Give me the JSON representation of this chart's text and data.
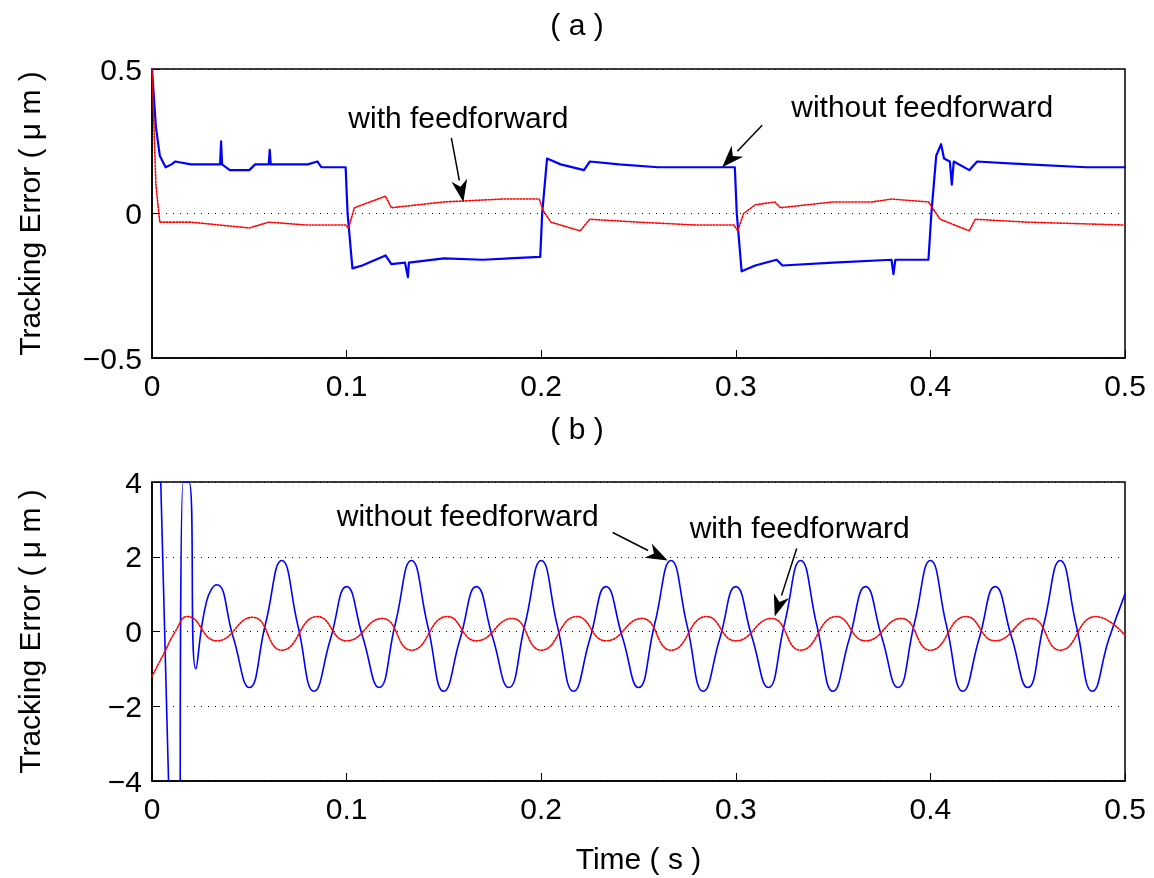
{
  "chart_data": [
    {
      "type": "line",
      "title": "( a )",
      "ylabel": "Tracking Error ( μ m )",
      "xlim": [
        0,
        0.5
      ],
      "xticks": [
        0,
        0.1,
        0.2,
        0.3,
        0.4,
        0.5
      ],
      "ylim": [
        -0.5,
        0.5
      ],
      "yticks": [
        -0.5,
        0,
        0.5
      ],
      "grid": "y",
      "marker": "none",
      "annotations": [
        {
          "text": "with feedforward",
          "x": 0.16,
          "y": 0.04
        },
        {
          "text": "without feedforward",
          "x": 0.293,
          "y": 0.16
        }
      ],
      "series": [
        {
          "color": "#0000ff",
          "line_style": "solid",
          "x": [
            0,
            0.002,
            0.004,
            0.007,
            0.01,
            0.012,
            0.02,
            0.035,
            0.0355,
            0.036,
            0.04,
            0.05,
            0.053,
            0.06,
            0.0605,
            0.061,
            0.08,
            0.085,
            0.087,
            0.0995,
            0.1005,
            0.103,
            0.108,
            0.12,
            0.123,
            0.13,
            0.1315,
            0.132,
            0.15,
            0.17,
            0.1995,
            0.2005,
            0.203,
            0.21,
            0.222,
            0.225,
            0.24,
            0.26,
            0.28,
            0.2995,
            0.3005,
            0.303,
            0.31,
            0.321,
            0.324,
            0.35,
            0.38,
            0.381,
            0.382,
            0.399,
            0.4005,
            0.403,
            0.4055,
            0.407,
            0.41,
            0.411,
            0.412,
            0.42,
            0.424,
            0.45,
            0.48,
            0.5
          ],
          "values": [
            0.5,
            0.3,
            0.2,
            0.16,
            0.17,
            0.18,
            0.17,
            0.17,
            0.25,
            0.17,
            0.15,
            0.15,
            0.17,
            0.17,
            0.22,
            0.17,
            0.17,
            0.18,
            0.16,
            0.16,
            0.0,
            -0.19,
            -0.18,
            -0.145,
            -0.175,
            -0.17,
            -0.22,
            -0.17,
            -0.155,
            -0.16,
            -0.15,
            0.0,
            0.19,
            0.17,
            0.15,
            0.18,
            0.17,
            0.16,
            0.16,
            0.16,
            0.0,
            -0.2,
            -0.18,
            -0.16,
            -0.18,
            -0.17,
            -0.16,
            -0.21,
            -0.16,
            -0.16,
            0.0,
            0.2,
            0.24,
            0.19,
            0.18,
            0.1,
            0.18,
            0.15,
            0.18,
            0.17,
            0.16,
            0.16
          ]
        },
        {
          "color": "#ff0000",
          "line_style": "dotted",
          "x": [
            0,
            0.002,
            0.004,
            0.02,
            0.05,
            0.06,
            0.08,
            0.0995,
            0.101,
            0.104,
            0.12,
            0.123,
            0.15,
            0.18,
            0.199,
            0.201,
            0.205,
            0.22,
            0.225,
            0.25,
            0.28,
            0.299,
            0.301,
            0.304,
            0.31,
            0.32,
            0.323,
            0.35,
            0.37,
            0.38,
            0.399,
            0.401,
            0.405,
            0.42,
            0.423,
            0.45,
            0.5
          ],
          "values": [
            0.5,
            0.1,
            -0.03,
            -0.03,
            -0.05,
            -0.03,
            -0.04,
            -0.04,
            -0.05,
            0.02,
            0.06,
            0.02,
            0.04,
            0.05,
            0.05,
            0.01,
            -0.03,
            -0.06,
            -0.02,
            -0.03,
            -0.04,
            -0.04,
            -0.06,
            0.0,
            0.03,
            0.04,
            0.02,
            0.04,
            0.04,
            0.05,
            0.04,
            0.02,
            -0.02,
            -0.06,
            -0.02,
            -0.03,
            -0.04
          ]
        }
      ]
    },
    {
      "type": "line",
      "title": "( b )",
      "xlabel": "Time ( s )",
      "ylabel": "Tracking Error ( μ m )",
      "xlim": [
        0,
        0.5
      ],
      "xticks": [
        0,
        0.1,
        0.2,
        0.3,
        0.4,
        0.5
      ],
      "ylim": [
        -4,
        4
      ],
      "yticks": [
        -4,
        -2,
        0,
        2,
        4
      ],
      "grid": "y",
      "marker": "none",
      "annotations": [
        {
          "text": "without feedforward",
          "x": 0.265,
          "y": 1.9
        },
        {
          "text": "with feedforward",
          "x": 0.32,
          "y": 0.4
        }
      ],
      "series": [
        {
          "color": "#0000ff",
          "line_style": "solid",
          "x": [
            0.0045,
            0.0085,
            0.012,
            0.0145,
            0.016,
            0.019,
            0.0225,
            0.028,
            0.0333,
            0.0417,
            0.05,
            0.0583,
            0.0667,
            0.075,
            0.0833,
            0.0917,
            0.1,
            0.1083,
            0.1167,
            0.125,
            0.1333,
            0.1417,
            0.15,
            0.1583,
            0.1667,
            0.175,
            0.1833,
            0.1917,
            0.2,
            0.2083,
            0.2167,
            0.225,
            0.2333,
            0.2417,
            0.25,
            0.2583,
            0.2667,
            0.275,
            0.2833,
            0.2917,
            0.3,
            0.3083,
            0.3167,
            0.325,
            0.3333,
            0.3417,
            0.35,
            0.3583,
            0.3667,
            0.375,
            0.3833,
            0.3917,
            0.4,
            0.4083,
            0.4167,
            0.425,
            0.4333,
            0.4417,
            0.45,
            0.4583,
            0.4667,
            0.475,
            0.4833,
            0.4917,
            0.5
          ],
          "values": [
            4,
            -4,
            null,
            -4,
            4,
            4,
            -1.0,
            0.8,
            1.25,
            -0.15,
            -1.5,
            0.2,
            1.9,
            0.15,
            -1.6,
            -0.2,
            1.2,
            -0.15,
            -1.5,
            0.2,
            1.9,
            0.15,
            -1.6,
            -0.2,
            1.2,
            -0.15,
            -1.5,
            0.2,
            1.9,
            0.15,
            -1.6,
            -0.2,
            1.2,
            -0.15,
            -1.5,
            0.2,
            1.9,
            0.15,
            -1.6,
            -0.2,
            1.2,
            -0.15,
            -1.5,
            0.2,
            1.9,
            0.15,
            -1.6,
            -0.2,
            1.2,
            -0.15,
            -1.5,
            0.2,
            1.9,
            0.15,
            -1.6,
            -0.2,
            1.2,
            -0.15,
            -1.5,
            0.2,
            1.9,
            0.15,
            -1.6,
            -0.2,
            1.0
          ]
        },
        {
          "color": "#ff0000",
          "line_style": "dotted",
          "x": [
            0,
            0.006,
            0.012,
            0.0183,
            0.0333,
            0.0517,
            0.0667,
            0.085,
            0.1,
            0.1183,
            0.1333,
            0.1517,
            0.1667,
            0.185,
            0.2,
            0.2183,
            0.2333,
            0.2517,
            0.2667,
            0.285,
            0.3,
            0.3183,
            0.3333,
            0.3517,
            0.3667,
            0.385,
            0.4,
            0.4183,
            0.4333,
            0.4517,
            0.4667,
            0.485,
            0.5
          ],
          "values": [
            -1.2,
            -0.6,
            0.0,
            0.4,
            -0.25,
            0.38,
            -0.5,
            0.4,
            -0.25,
            0.35,
            -0.5,
            0.4,
            -0.25,
            0.35,
            -0.5,
            0.4,
            -0.25,
            0.35,
            -0.5,
            0.4,
            -0.25,
            0.35,
            -0.5,
            0.4,
            -0.25,
            0.35,
            -0.5,
            0.4,
            -0.25,
            0.35,
            -0.5,
            0.4,
            -0.1
          ]
        }
      ]
    }
  ]
}
